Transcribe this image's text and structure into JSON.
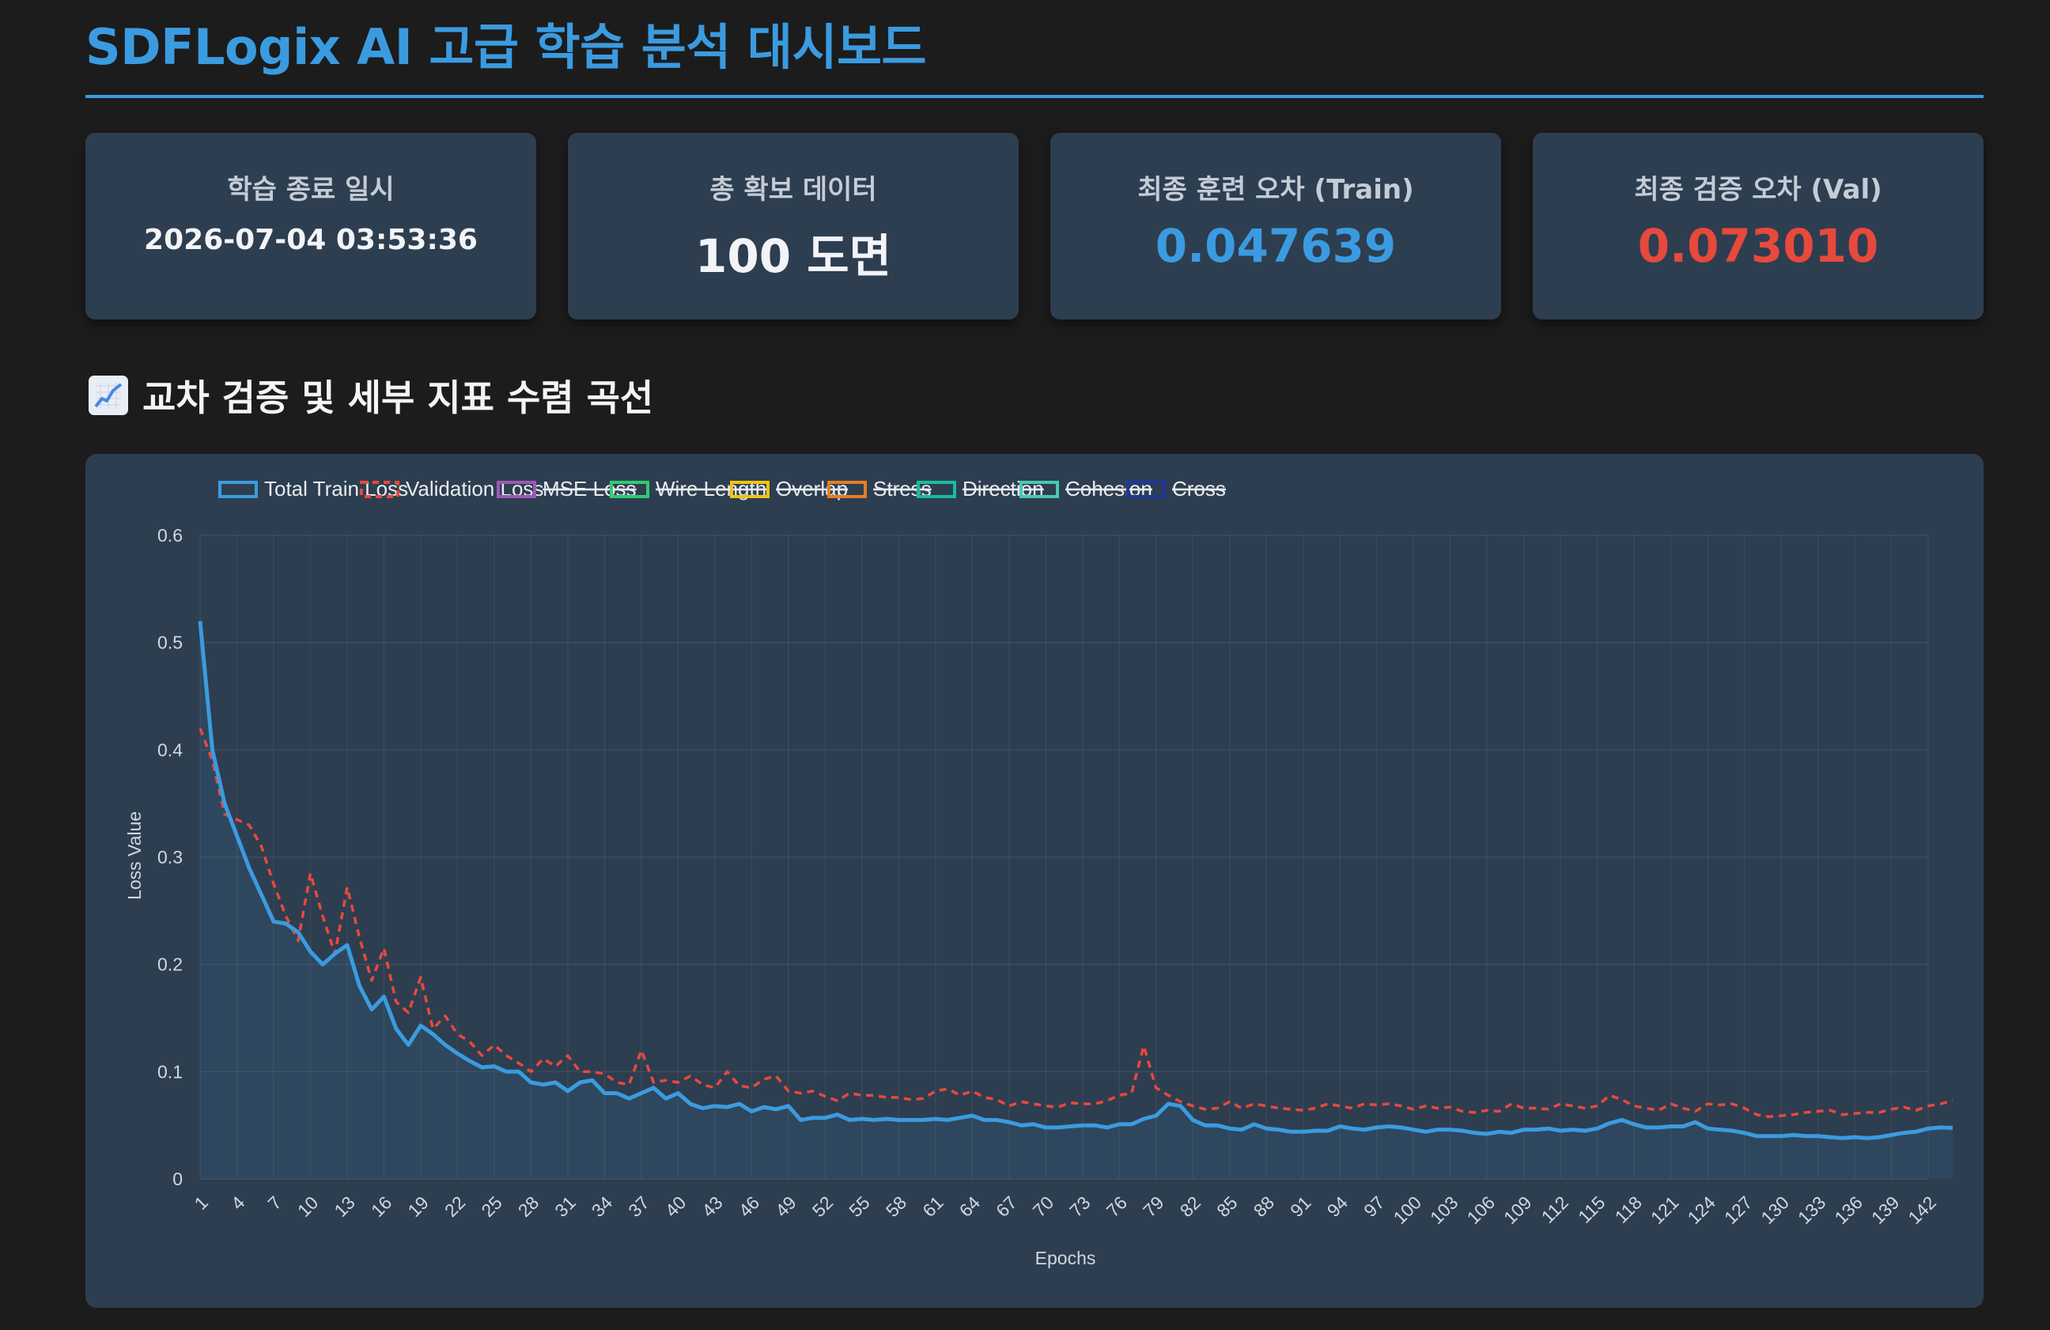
{
  "header": {
    "title": "SDFLogix AI 고급 학습 분석 대시보드"
  },
  "cards": [
    {
      "label": "학습 종료 일시",
      "value": "2026-07-04 03:53:36"
    },
    {
      "label": "총 확보 데이터",
      "value": "100 도면"
    },
    {
      "label": "최종 훈련 오차 (Train)",
      "value": "0.047639"
    },
    {
      "label": "최종 검증 오차 (Val)",
      "value": "0.073010"
    }
  ],
  "section": {
    "title": "교차 검증 및 세부 지표 수렴 곡선",
    "icon": "chart-increasing-icon"
  },
  "colors": {
    "accent": "#3b9be0",
    "val": "#e7493c",
    "card_bg": "#2d3e50",
    "page_bg": "#1c1c1c"
  },
  "chart_data": {
    "type": "line",
    "xlabel": "Epochs",
    "ylabel": "Loss Value",
    "ylim": [
      0,
      0.6
    ],
    "yticks": [
      "0",
      "0.1",
      "0.2",
      "0.3",
      "0.4",
      "0.5",
      "0.6"
    ],
    "x_range": [
      1,
      142
    ],
    "xtick_step": 3,
    "grid": true,
    "legend_position": "top",
    "legend": [
      {
        "name": "Total Train Loss",
        "color": "#3b9be0",
        "style": "solid",
        "hidden": false
      },
      {
        "name": "Validation Loss",
        "color": "#e7493c",
        "style": "dashed",
        "hidden": false
      },
      {
        "name": "MSE Loss",
        "color": "#9b59b6",
        "style": "solid",
        "hidden": true
      },
      {
        "name": "Wire Length",
        "color": "#2ecc71",
        "style": "solid",
        "hidden": true
      },
      {
        "name": "Overlap",
        "color": "#f1c40f",
        "style": "solid",
        "hidden": true
      },
      {
        "name": "Stress",
        "color": "#e67e22",
        "style": "solid",
        "hidden": true
      },
      {
        "name": "Direction",
        "color": "#1abc9c",
        "style": "solid",
        "hidden": true
      },
      {
        "name": "Cohesion",
        "color": "#48c9b0",
        "style": "solid",
        "hidden": true
      },
      {
        "name": "Cross",
        "color": "#1e3799",
        "style": "solid",
        "hidden": true
      }
    ],
    "series": [
      {
        "name": "Total Train Loss",
        "values": [
          0.52,
          0.4,
          0.35,
          0.32,
          0.29,
          0.265,
          0.24,
          0.238,
          0.23,
          0.212,
          0.2,
          0.21,
          0.218,
          0.18,
          0.158,
          0.17,
          0.14,
          0.125,
          0.143,
          0.135,
          0.125,
          0.117,
          0.11,
          0.104,
          0.105,
          0.1,
          0.1,
          0.09,
          0.088,
          0.09,
          0.082,
          0.09,
          0.092,
          0.08,
          0.08,
          0.075,
          0.08,
          0.085,
          0.075,
          0.08,
          0.07,
          0.066,
          0.068,
          0.067,
          0.07,
          0.063,
          0.067,
          0.065,
          0.068,
          0.055,
          0.057,
          0.057,
          0.06,
          0.055,
          0.056,
          0.055,
          0.056,
          0.055,
          0.055,
          0.055,
          0.056,
          0.055,
          0.057,
          0.059,
          0.055,
          0.055,
          0.053,
          0.05,
          0.051,
          0.048,
          0.048,
          0.049,
          0.05,
          0.05,
          0.048,
          0.051,
          0.051,
          0.056,
          0.059,
          0.07,
          0.068,
          0.055,
          0.05,
          0.05,
          0.047,
          0.046,
          0.051,
          0.047,
          0.046,
          0.044,
          0.044,
          0.045,
          0.045,
          0.049,
          0.047,
          0.046,
          0.048,
          0.049,
          0.048,
          0.046,
          0.044,
          0.046,
          0.046,
          0.045,
          0.043,
          0.042,
          0.044,
          0.043,
          0.046,
          0.046,
          0.047,
          0.045,
          0.046,
          0.045,
          0.047,
          0.052,
          0.055,
          0.051,
          0.048,
          0.048,
          0.049,
          0.049,
          0.053,
          0.047,
          0.046,
          0.045,
          0.043,
          0.04,
          0.04,
          0.04,
          0.041,
          0.04,
          0.04,
          0.039,
          0.038,
          0.039,
          0.038,
          0.039,
          0.041,
          0.043,
          0.044,
          0.047,
          0.048,
          0.047639
        ]
      },
      {
        "name": "Validation Loss",
        "values": [
          0.42,
          0.39,
          0.34,
          0.335,
          0.33,
          0.31,
          0.275,
          0.245,
          0.222,
          0.285,
          0.245,
          0.21,
          0.272,
          0.225,
          0.185,
          0.215,
          0.165,
          0.155,
          0.188,
          0.14,
          0.152,
          0.135,
          0.128,
          0.115,
          0.125,
          0.115,
          0.108,
          0.1,
          0.112,
          0.105,
          0.115,
          0.1,
          0.1,
          0.098,
          0.09,
          0.088,
          0.12,
          0.09,
          0.092,
          0.09,
          0.096,
          0.088,
          0.085,
          0.1,
          0.087,
          0.085,
          0.093,
          0.096,
          0.082,
          0.08,
          0.082,
          0.077,
          0.073,
          0.08,
          0.078,
          0.078,
          0.076,
          0.076,
          0.074,
          0.075,
          0.082,
          0.084,
          0.078,
          0.082,
          0.076,
          0.074,
          0.068,
          0.072,
          0.07,
          0.068,
          0.067,
          0.071,
          0.07,
          0.07,
          0.073,
          0.078,
          0.08,
          0.124,
          0.085,
          0.078,
          0.072,
          0.068,
          0.065,
          0.066,
          0.072,
          0.066,
          0.07,
          0.068,
          0.066,
          0.065,
          0.064,
          0.066,
          0.07,
          0.068,
          0.066,
          0.07,
          0.069,
          0.07,
          0.068,
          0.065,
          0.068,
          0.066,
          0.067,
          0.063,
          0.062,
          0.064,
          0.063,
          0.07,
          0.066,
          0.066,
          0.065,
          0.07,
          0.068,
          0.066,
          0.068,
          0.078,
          0.074,
          0.068,
          0.066,
          0.064,
          0.07,
          0.066,
          0.063,
          0.07,
          0.069,
          0.07,
          0.066,
          0.06,
          0.058,
          0.059,
          0.06,
          0.062,
          0.063,
          0.064,
          0.06,
          0.061,
          0.062,
          0.062,
          0.065,
          0.067,
          0.064,
          0.068,
          0.07,
          0.07301
        ]
      }
    ]
  }
}
